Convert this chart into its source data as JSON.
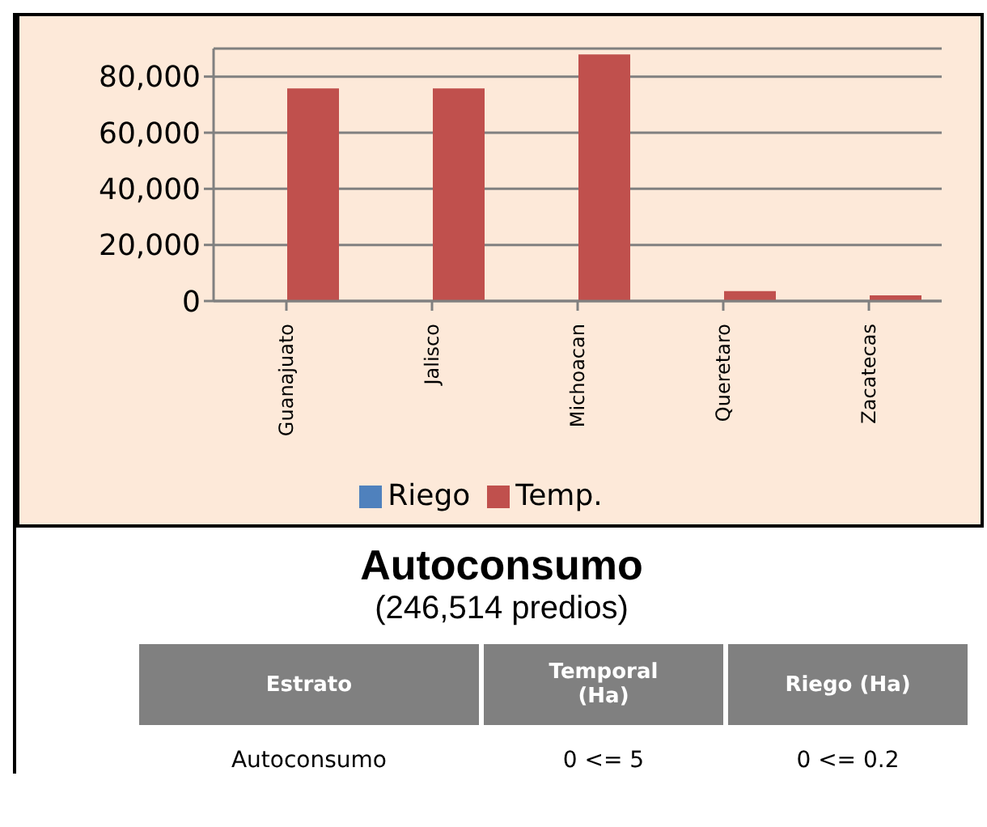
{
  "chart_data": {
    "type": "bar",
    "title": "Autoconsumo",
    "subtitle": "(246,514 predios)",
    "categories": [
      "Guanajuato",
      "Jalisco",
      "Michoacan",
      "Queretaro",
      "Zacatecas"
    ],
    "series": [
      {
        "name": "Riego",
        "color": "#4f81bd",
        "values": [
          0,
          0,
          0,
          0,
          0
        ]
      },
      {
        "name": "Temp.",
        "color": "#c0504d",
        "values": [
          75800,
          75800,
          87900,
          3500,
          2000
        ]
      }
    ],
    "ylim": [
      0,
      90000
    ],
    "yticks": [
      0,
      {
        "value": 20000,
        "label": "20,000"
      },
      {
        "value": 40000,
        "label": "40,000"
      },
      {
        "value": 60000,
        "label": "60,000"
      },
      {
        "value": 80000,
        "label": "80,000"
      }
    ],
    "grid": "y",
    "legend": "bottom",
    "annotations": [
      "Estrato",
      "Temporal (Ha)",
      "Riego (Ha)",
      "Autoconsumo",
      "0 <= 5",
      "0 <= 0.2"
    ]
  }
}
